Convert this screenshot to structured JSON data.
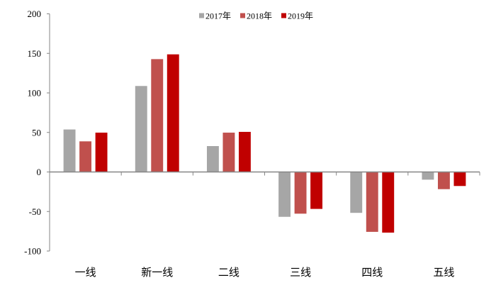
{
  "chart_data": {
    "type": "bar",
    "title": "",
    "xlabel": "",
    "ylabel": "",
    "ylim": [
      -100,
      200
    ],
    "yticks": [
      -100,
      -50,
      0,
      50,
      100,
      150,
      200
    ],
    "ytick_labels": [
      "-100",
      "-50",
      "0",
      "50",
      "100",
      "150",
      "200"
    ],
    "grid": false,
    "legend_position": "top-center",
    "categories": [
      "一线",
      "新一线",
      "二线",
      "三线",
      "四线",
      "五线"
    ],
    "series": [
      {
        "name": "2017年",
        "color": "#a6a6a6",
        "values": [
          54,
          109,
          33,
          -57,
          -52,
          -10
        ]
      },
      {
        "name": "2018年",
        "color": "#c0504d",
        "values": [
          39,
          143,
          50,
          -53,
          -76,
          -22
        ]
      },
      {
        "name": "2019年",
        "color": "#c00000",
        "values": [
          50,
          149,
          51,
          -47,
          -77,
          -18
        ]
      }
    ]
  }
}
